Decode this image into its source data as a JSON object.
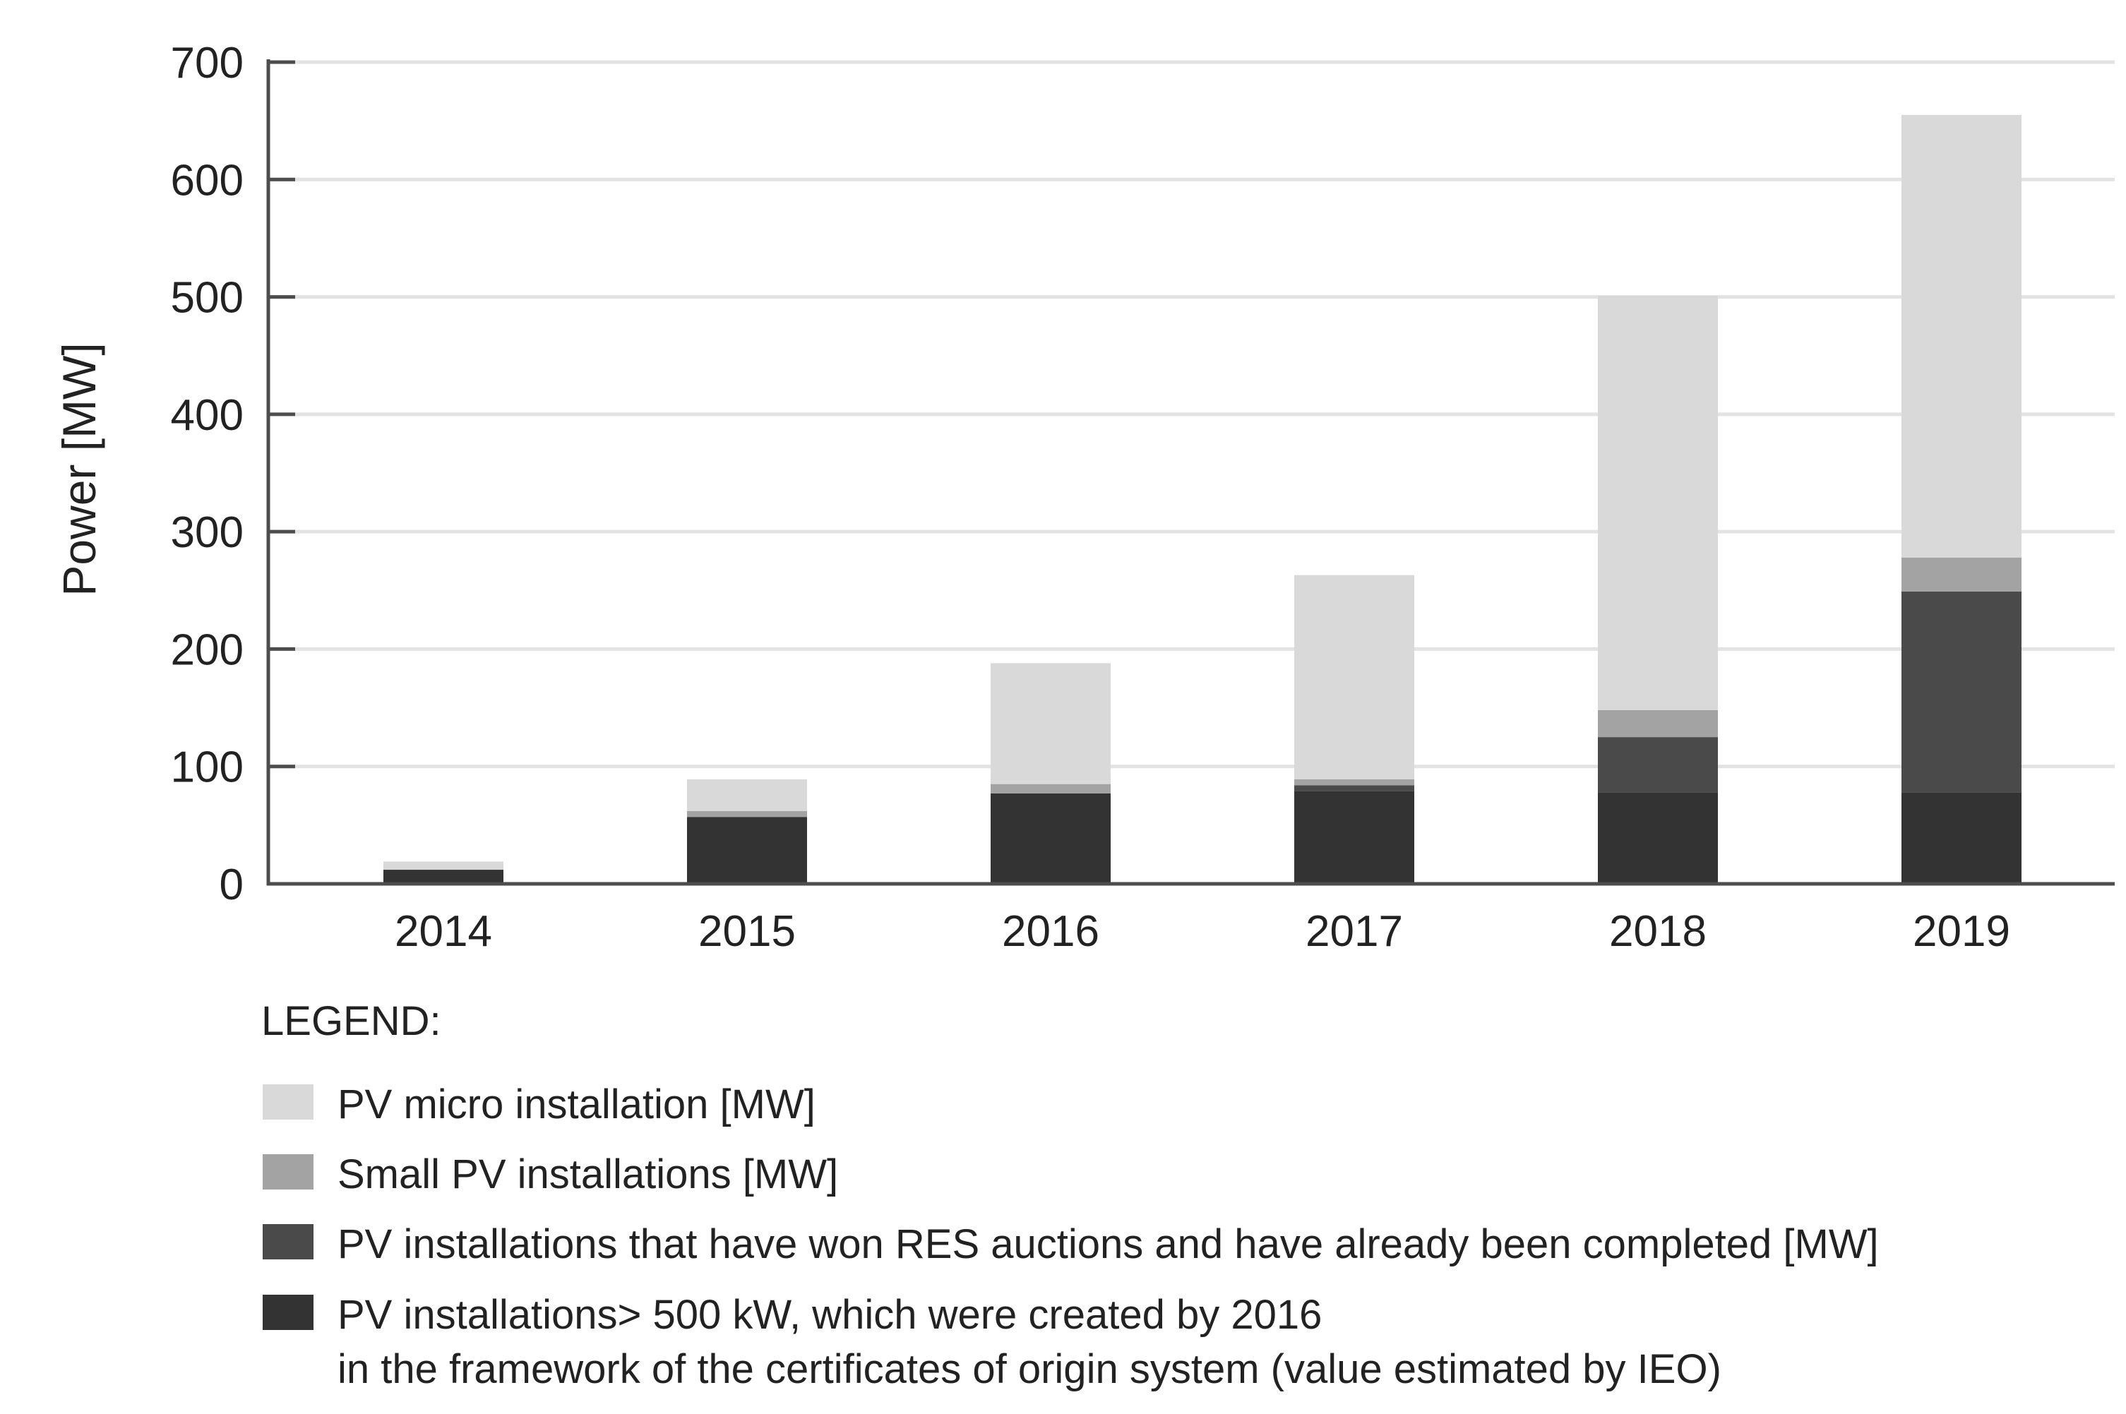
{
  "chart_data": {
    "type": "bar",
    "stacked": true,
    "title": "",
    "xlabel": "",
    "ylabel": "Power [MW]",
    "ylim": [
      0,
      700
    ],
    "yticks": [
      0,
      100,
      200,
      300,
      400,
      500,
      600,
      700
    ],
    "grid": true,
    "categories": [
      "2014",
      "2015",
      "2016",
      "2017",
      "2018",
      "2019"
    ],
    "series": [
      {
        "name": "PV installations> 500 kW, which were created by 2016 in the framework of the certificates of origin system (value estimated by IEO)",
        "color": "#333333",
        "values": [
          12,
          57,
          77,
          79,
          78,
          78
        ]
      },
      {
        "name": "PV installations that have won RES auctions and have already been completed [MW]",
        "color": "#4a4a4a",
        "values": [
          0,
          0,
          0,
          5,
          47,
          171
        ]
      },
      {
        "name": "Small PV installations [MW]",
        "color": "#a3a3a3",
        "values": [
          0,
          5,
          8,
          5,
          23,
          29
        ]
      },
      {
        "name": "PV micro installation [MW]",
        "color": "#d9d9d9",
        "values": [
          7,
          27,
          103,
          174,
          353,
          377
        ]
      }
    ],
    "legend": {
      "title": "LEGEND:",
      "position": "bottom",
      "entries": [
        {
          "color": "#d9d9d9",
          "lines": [
            "PV micro installation [MW]"
          ]
        },
        {
          "color": "#a3a3a3",
          "lines": [
            "Small PV installations [MW]"
          ]
        },
        {
          "color": "#4a4a4a",
          "lines": [
            "PV installations that have won RES auctions and have already been completed [MW]"
          ]
        },
        {
          "color": "#333333",
          "lines": [
            "PV installations> 500 kW, which were created by 2016",
            "in the framework of the certificates of origin system (value estimated by IEO)"
          ]
        }
      ]
    }
  }
}
